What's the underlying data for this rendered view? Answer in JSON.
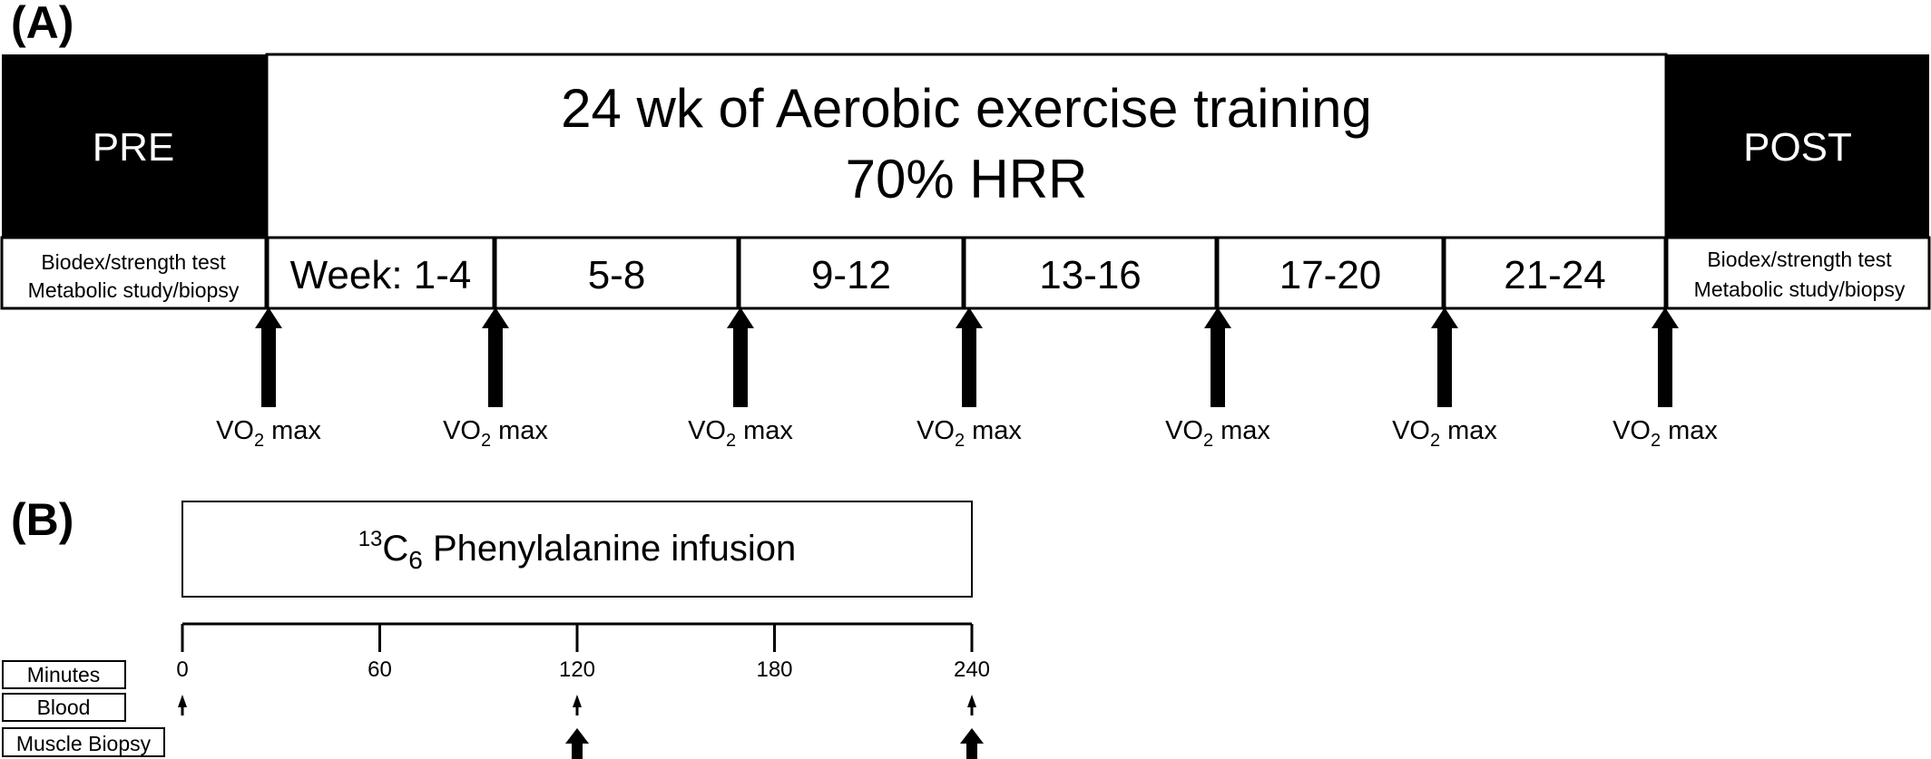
{
  "panel_a": {
    "label": "(A)",
    "pre": "PRE",
    "post": "POST",
    "title_line1": "24 wk of Aerobic exercise training",
    "title_line2": "70% HRR",
    "pre_tests": [
      "Biodex/strength  test",
      "Metabolic study/biopsy"
    ],
    "post_tests": [
      "Biodex/strength  test",
      "Metabolic study/biopsy"
    ],
    "weeks": [
      "Week: 1-4",
      "5-8",
      "9-12",
      "13-16",
      "17-20",
      "21-24"
    ],
    "vo2_label": {
      "main": "VO",
      "sub": "2",
      "rest": " max"
    },
    "vo2_count": 7
  },
  "panel_b": {
    "label": "(B)",
    "infusion": {
      "sup": "13",
      "main": "C",
      "sub": "6",
      "rest": " Phenylalanine infusion"
    },
    "minutes_ticks": [
      "0",
      "60",
      "120",
      "180",
      "240"
    ],
    "row_labels": [
      "Minutes",
      "Blood",
      "Muscle Biopsy"
    ],
    "blood_samples_min": [
      0,
      120,
      240
    ],
    "biopsy_samples_min": [
      120,
      240
    ]
  }
}
